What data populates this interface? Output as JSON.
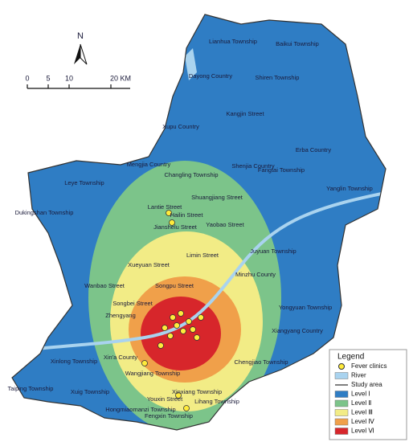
{
  "north": "N",
  "scale": [
    "0",
    "5",
    "10",
    "20 KM"
  ],
  "places": [
    "Lianhua Township",
    "Baikui Township",
    "Dayong Country",
    "Shiren Township",
    "Kangjin Street",
    "Xupu Country",
    "Erba Country",
    "Mengjia Country",
    "Shenjia Country",
    "Changling Township",
    "Fangtai Township",
    "Yanglin Township",
    "Leye Township",
    "Dukingshan Township",
    "Shuangjiang Street",
    "Lantie Street",
    "Hailin Street",
    "Jianshelu Street",
    "Yaobao Street",
    "Limin Street",
    "Juyuan Township",
    "Xueyuan Street",
    "Minzhu County",
    "Wanbao Street",
    "Songpu Street",
    "Songbei Street",
    "Yongyuan Township",
    "Zhengyang",
    "Xiangyang Country",
    "Xin'a County",
    "Xinlong Township",
    "Chengjiao Township",
    "Taiping Township",
    "Xuig Township",
    "Wangjiang Township",
    "Youxin Street",
    "Xinxiang Township",
    "Hongmiaomanzi Township",
    "Fengxin Township",
    "Lihang Township"
  ],
  "legend": {
    "title": "Legend",
    "items": [
      "Fever clinics",
      "River",
      "Study area",
      "Level Ⅰ",
      "Level Ⅱ",
      "Level Ⅲ",
      "Level Ⅳ",
      "Level Ⅵ"
    ]
  }
}
